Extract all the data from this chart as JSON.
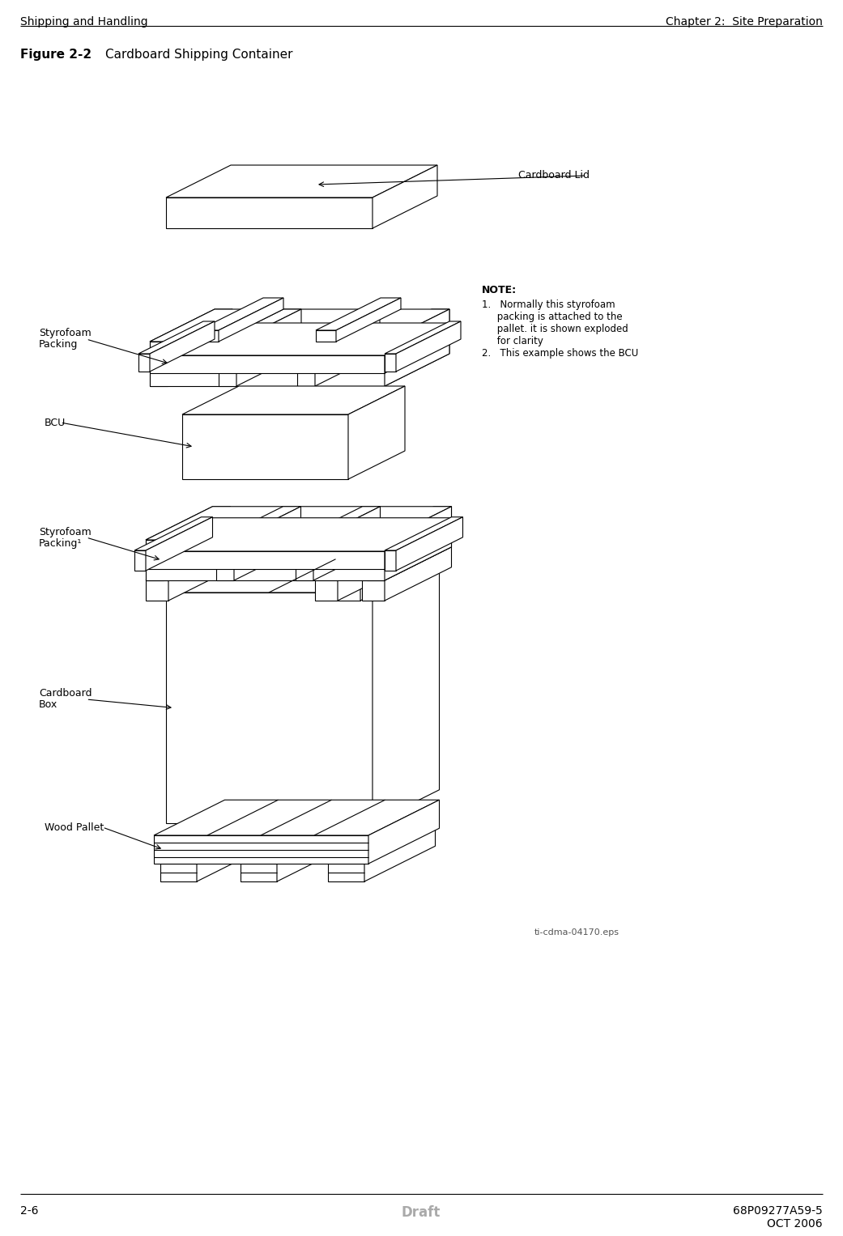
{
  "header_left": "Shipping and Handling",
  "header_right": "Chapter 2:  Site Preparation",
  "figure_label": "Figure 2-2",
  "figure_title": "Cardboard Shipping Container",
  "footer_left": "2-6",
  "footer_center": "Draft",
  "footer_right_top": "68P09277A59-5",
  "footer_right_bottom": "OCT 2006",
  "eps_label": "ti-cdma-04170.eps",
  "note_title": "NOTE:",
  "note_lines": [
    "1.   Normally this styrofoam",
    "     packing is attached to the",
    "     pallet. it is shown exploded",
    "     for clarity",
    "2.   This example shows the BCU"
  ],
  "label_cardboard_lid": "Cardboard Lid",
  "label_styrofoam_top_line1": "Styrofoam",
  "label_styrofoam_top_line2": "Packing",
  "label_bcu": "BCU",
  "label_styrofoam_bot_line1": "Styrofoam",
  "label_styrofoam_bot_line2": "Packing¹",
  "label_cardboard_box_line1": "Cardboard",
  "label_cardboard_box_line2": "Box",
  "label_wood_pallet": "Wood Pallet",
  "bg_color": "#ffffff",
  "line_color": "#000000",
  "draft_color": "#aaaaaa",
  "fig_label_fontsize": 11,
  "header_fontsize": 10,
  "footer_fontsize": 10,
  "label_fontsize": 9,
  "note_fontsize": 9
}
